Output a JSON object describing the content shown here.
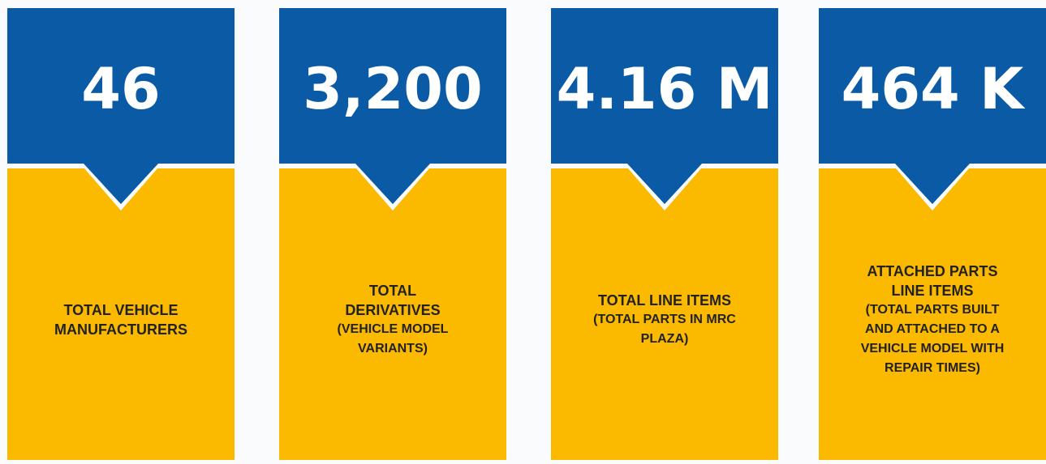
{
  "cards": [
    {
      "value": "46",
      "title": "TOTAL VEHICLE MANUFACTURERS"
    },
    {
      "value": "3,200",
      "title": "TOTAL DERIVATIVES",
      "subtitle": "(VEHICLE MODEL VARIANTS)"
    },
    {
      "value": "4.16 M",
      "title": "TOTAL LINE ITEMS",
      "subtitle": "(TOTAL PARTS IN MRC PLAZA)"
    },
    {
      "value": "464 K",
      "title": "ATTACHED PARTS LINE ITEMS",
      "subtitle": "(TOTAL PARTS BUILT AND ATTACHED TO A VEHICLE MODEL WITH REPAIR TIMES)"
    }
  ]
}
